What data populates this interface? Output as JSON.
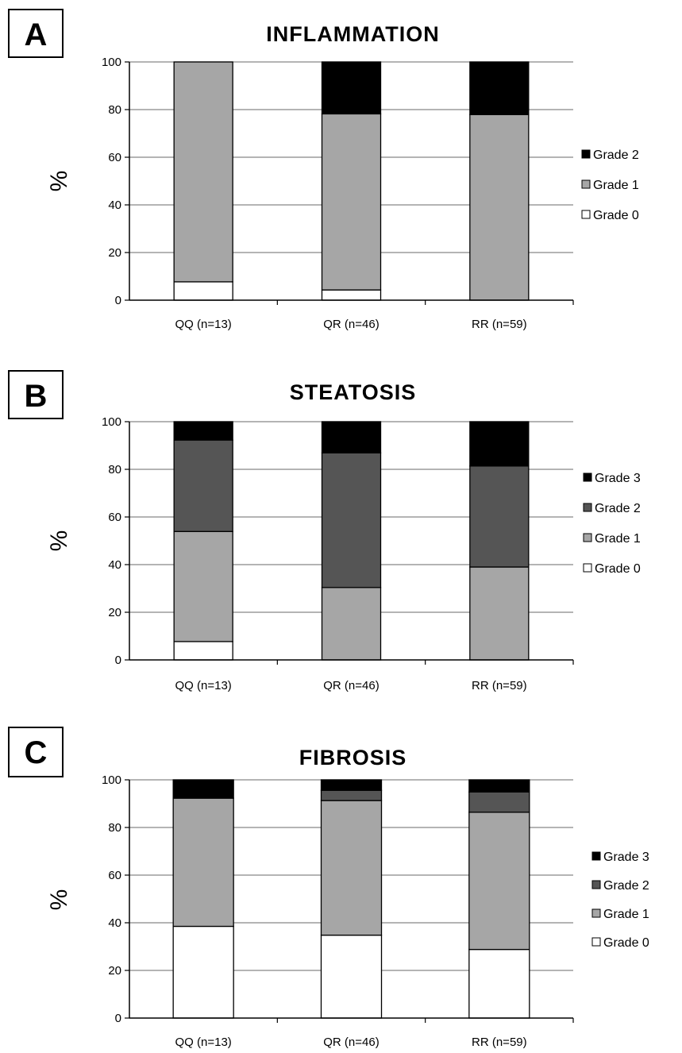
{
  "chart_data": [
    {
      "type": "bar",
      "stacked": true,
      "panel": "A",
      "title": "INFLAMMATION",
      "ylabel": "%",
      "ylim": [
        0,
        100
      ],
      "yticks": [
        "0",
        "20",
        "40",
        "60",
        "80",
        "100"
      ],
      "categories": [
        "QQ (n=13)",
        "QR (n=46)",
        "RR (n=59)"
      ],
      "series": [
        {
          "name": "Grade 0",
          "color": "#ffffff",
          "values": [
            7.7,
            4.3,
            0
          ]
        },
        {
          "name": "Grade 1",
          "color": "#a6a6a6",
          "values": [
            92.3,
            73.9,
            77.9
          ]
        },
        {
          "name": "Grade 2",
          "color": "#000000",
          "values": [
            0,
            21.8,
            22.1
          ]
        }
      ],
      "legend_position": "right",
      "grid": true
    },
    {
      "type": "bar",
      "stacked": true,
      "panel": "B",
      "title": "STEATOSIS",
      "ylabel": "%",
      "ylim": [
        0,
        100
      ],
      "yticks": [
        "0",
        "20",
        "40",
        "60",
        "80",
        "100"
      ],
      "categories": [
        "QQ (n=13)",
        "QR (n=46)",
        "RR (n=59)"
      ],
      "series": [
        {
          "name": "Grade 0",
          "color": "#ffffff",
          "values": [
            7.7,
            0,
            0
          ]
        },
        {
          "name": "Grade 1",
          "color": "#a6a6a6",
          "values": [
            46.2,
            30.4,
            39
          ]
        },
        {
          "name": "Grade 2",
          "color": "#555555",
          "values": [
            38.4,
            56.5,
            42.4
          ]
        },
        {
          "name": "Grade 3",
          "color": "#000000",
          "values": [
            7.7,
            13.1,
            18.6
          ]
        }
      ],
      "legend_position": "right",
      "grid": true
    },
    {
      "type": "bar",
      "stacked": true,
      "panel": "C",
      "title": "FIBROSIS",
      "ylabel": "%",
      "ylim": [
        0,
        100
      ],
      "yticks": [
        "0",
        "20",
        "40",
        "60",
        "80",
        "100"
      ],
      "categories": [
        "QQ (n=13)",
        "QR (n=46)",
        "RR (n=59)"
      ],
      "series": [
        {
          "name": "Grade 0",
          "color": "#ffffff",
          "values": [
            38.5,
            34.8,
            28.8
          ]
        },
        {
          "name": "Grade 1",
          "color": "#a6a6a6",
          "values": [
            53.8,
            56.5,
            57.6
          ]
        },
        {
          "name": "Grade 2",
          "color": "#555555",
          "values": [
            0,
            4.3,
            8.5
          ]
        },
        {
          "name": "Grade 3",
          "color": "#000000",
          "values": [
            7.7,
            4.4,
            5.1
          ]
        }
      ],
      "legend_position": "right",
      "grid": true
    }
  ]
}
